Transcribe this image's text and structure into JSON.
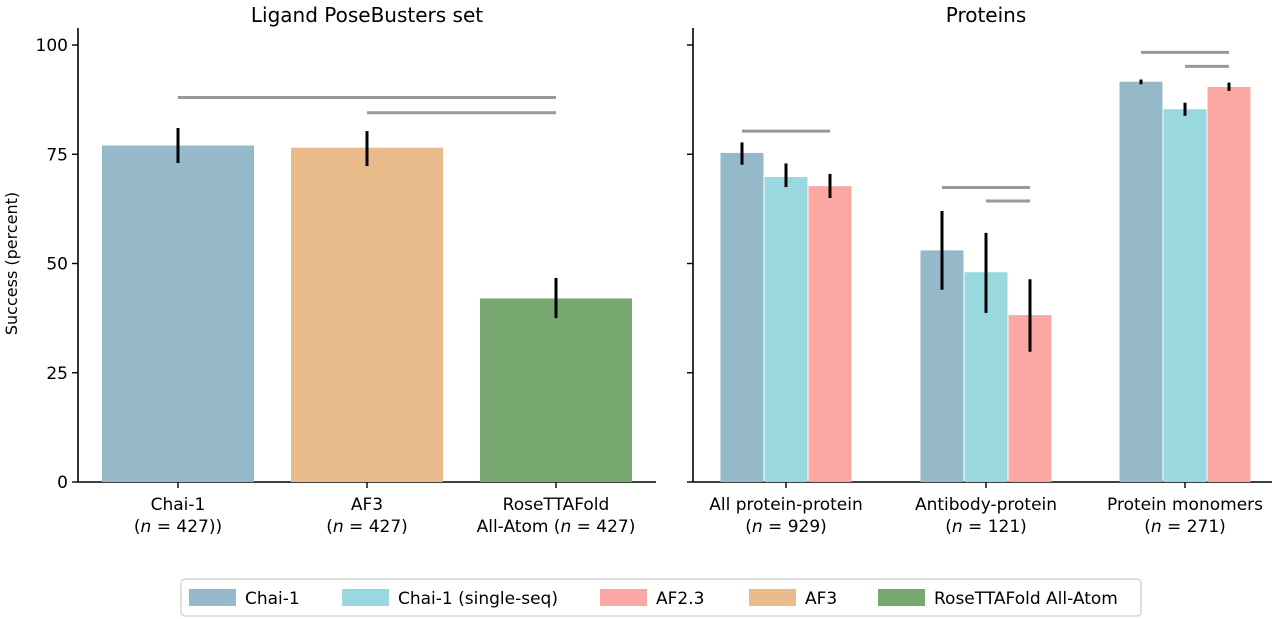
{
  "chart_data": [
    {
      "type": "bar",
      "title": "Ligand PoseBusters set",
      "ylabel": "Success (percent)",
      "xlabel": "",
      "ylim": [
        0,
        100
      ],
      "yticks": [
        "0",
        "25",
        "50",
        "75",
        "100"
      ],
      "categories": [
        {
          "line1": "Chai-1",
          "pre": "(",
          "n": "n",
          "post": " = 427))",
          "series": "Chai-1"
        },
        {
          "line1": "AF3",
          "pre": "(",
          "n": "n",
          "post": " = 427)",
          "series": "AF3"
        },
        {
          "line1": "RoseTTAFold",
          "pre": "All-Atom (",
          "n": "n",
          "post": " = 427)",
          "series": "RoseTTAFold All-Atom"
        }
      ],
      "values": [
        77,
        76.5,
        42
      ],
      "errors": [
        [
          73,
          81
        ],
        [
          72.3,
          80.3
        ],
        [
          37.5,
          46.7
        ]
      ],
      "significance_brackets": [
        {
          "from": 0,
          "to": 2,
          "y": 88
        },
        {
          "from": 1,
          "to": 2,
          "y": 84.5
        }
      ]
    },
    {
      "type": "bar",
      "title": "Proteins",
      "ylabel": "",
      "xlabel": "",
      "ylim": [
        0,
        100
      ],
      "categories": [
        {
          "line1": "All protein-protein",
          "pre": "(",
          "n": "n",
          "post": " = 929)"
        },
        {
          "line1": "Antibody-protein",
          "pre": "(",
          "n": "n",
          "post": " = 121)"
        },
        {
          "line1": "Protein monomers",
          "pre": "(",
          "n": "n",
          "post": " = 271)"
        }
      ],
      "series": [
        {
          "name": "Chai-1",
          "values": [
            75.3,
            53,
            91.6
          ],
          "errors": [
            [
              72.6,
              77.7
            ],
            [
              44,
              62
            ],
            [
              91,
              92.1
            ]
          ]
        },
        {
          "name": "Chai-1 (single-seq)",
          "values": [
            69.8,
            48,
            85.3
          ],
          "errors": [
            [
              67.5,
              72.9
            ],
            [
              38.7,
              57
            ],
            [
              83.8,
              86.8
            ]
          ]
        },
        {
          "name": "AF2.3",
          "values": [
            67.7,
            38.2,
            90.4
          ],
          "errors": [
            [
              65,
              70.5
            ],
            [
              29.8,
              46.4
            ],
            [
              89.5,
              91.4
            ]
          ]
        }
      ],
      "significance_brackets": [
        {
          "group": 0,
          "from": 0,
          "to": 2,
          "y": 80.3
        },
        {
          "group": 1,
          "from": 0,
          "to": 2,
          "y": 67.4
        },
        {
          "group": 1,
          "from": 1,
          "to": 2,
          "y": 64.3
        },
        {
          "group": 2,
          "from": 0,
          "to": 2,
          "y": 98.3
        },
        {
          "group": 2,
          "from": 1,
          "to": 2,
          "y": 95.1
        }
      ]
    }
  ],
  "legend": {
    "position": "bottom-center",
    "entries": [
      {
        "label": "Chai-1",
        "color": "#96b9c9"
      },
      {
        "label": "Chai-1 (single-seq)",
        "color": "#98d8de"
      },
      {
        "label": "AF2.3",
        "color": "#fba8a4"
      },
      {
        "label": "AF3",
        "color": "#e9bb8a"
      },
      {
        "label": "RoseTTAFold All-Atom",
        "color": "#76a86f"
      }
    ]
  },
  "colors": {
    "error_bar": "#000000",
    "bracket": "#999999"
  }
}
